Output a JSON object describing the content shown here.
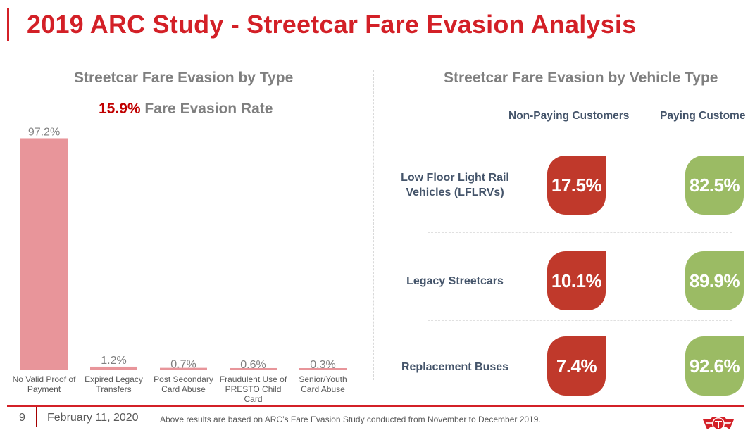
{
  "page": {
    "title": "2019 ARC Study - Streetcar Fare Evasion Analysis"
  },
  "left_panel": {
    "title": "Streetcar Fare Evasion by Type",
    "rate_value": "15.9%",
    "rate_label": " Fare Evasion Rate"
  },
  "right_panel": {
    "title": "Streetcar Fare Evasion by Vehicle Type",
    "columns": [
      "Non-Paying Customers",
      "Paying Custome"
    ],
    "rows": [
      {
        "label_line1": "Low Floor Light Rail",
        "label_line2": "Vehicles (LFLRVs)",
        "non_paying": "17.5%",
        "paying": "82.5%"
      },
      {
        "label_line1": "Legacy Streetcars",
        "label_line2": "",
        "non_paying": "10.1%",
        "paying": "89.9%"
      },
      {
        "label_line1": "Replacement Buses",
        "label_line2": "",
        "non_paying": "7.4%",
        "paying": "92.6%"
      }
    ],
    "colors": {
      "non_paying": "#c0392b",
      "paying": "#9bbb64"
    }
  },
  "chart_data": {
    "type": "bar",
    "title": "Streetcar Fare Evasion by Type",
    "categories": [
      "No Valid Proof of Payment",
      "Expired Legacy Transfers",
      "Post Secondary Card Abuse",
      "Fraudulent Use of PRESTO Child Card",
      "Senior/Youth Card Abuse"
    ],
    "category_lines": [
      [
        "No Valid Proof of",
        "Payment"
      ],
      [
        "Expired Legacy",
        "Transfers"
      ],
      [
        "Post Secondary",
        "Card Abuse"
      ],
      [
        "Fraudulent Use of",
        "PRESTO Child",
        "Card"
      ],
      [
        "Senior/Youth",
        "Card Abuse"
      ]
    ],
    "values": [
      97.2,
      1.2,
      0.7,
      0.6,
      0.3
    ],
    "value_labels": [
      "97.2%",
      "1.2%",
      "0.7%",
      "0.6%",
      "0.3%"
    ],
    "xlabel": "",
    "ylabel": "",
    "ylim": [
      0,
      100
    ],
    "grid": false,
    "bar_color": "#e8959a"
  },
  "footer": {
    "page_number": "9",
    "date": "February 11, 2020",
    "note": "Above results are based on ARC’s Fare Evasion Study conducted from November to December 2019.",
    "logo": "TTC"
  }
}
